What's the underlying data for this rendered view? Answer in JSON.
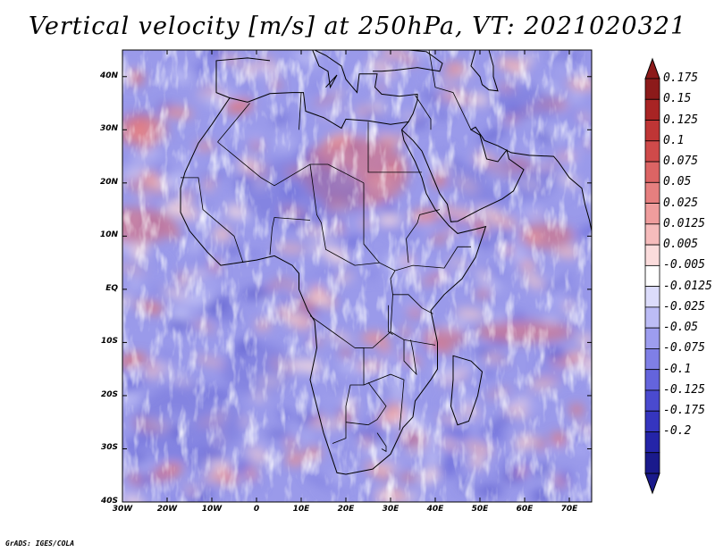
{
  "title": "Vertical velocity [m/s] at 250hPa, VT: 2021020321",
  "credit": "GrADS: IGES/COLA",
  "map": {
    "region": "Africa",
    "variable": "Vertical velocity",
    "level": "250hPa",
    "valid_time": "2021020321",
    "lon_range": [
      -30,
      75
    ],
    "lat_range": [
      -40,
      45
    ],
    "lat_ticks": [
      {
        "value": 40,
        "label": "40N"
      },
      {
        "value": 30,
        "label": "30N"
      },
      {
        "value": 20,
        "label": "20N"
      },
      {
        "value": 10,
        "label": "10N"
      },
      {
        "value": 0,
        "label": "EQ"
      },
      {
        "value": -10,
        "label": "10S"
      },
      {
        "value": -20,
        "label": "20S"
      },
      {
        "value": -30,
        "label": "30S"
      },
      {
        "value": -40,
        "label": "40S"
      }
    ],
    "lon_ticks": [
      {
        "value": -30,
        "label": "30W"
      },
      {
        "value": -20,
        "label": "20W"
      },
      {
        "value": -10,
        "label": "10W"
      },
      {
        "value": 0,
        "label": "0"
      },
      {
        "value": 10,
        "label": "10E"
      },
      {
        "value": 20,
        "label": "20E"
      },
      {
        "value": 30,
        "label": "30E"
      },
      {
        "value": 40,
        "label": "40E"
      },
      {
        "value": 50,
        "label": "50E"
      },
      {
        "value": 60,
        "label": "60E"
      },
      {
        "value": 70,
        "label": "70E"
      }
    ]
  },
  "colorbar": {
    "labels": [
      "0.175",
      "0.15",
      "0.125",
      "0.1",
      "0.075",
      "0.05",
      "0.025",
      "0.0125",
      "0.005",
      "-0.005",
      "-0.0125",
      "-0.025",
      "-0.05",
      "-0.075",
      "-0.1",
      "-0.125",
      "-0.175",
      "-0.2"
    ],
    "colors": [
      "#8c1a1a",
      "#a82424",
      "#bf3535",
      "#cf4a4a",
      "#dc6464",
      "#e67f7f",
      "#ef9d9d",
      "#f6bcbc",
      "#fbdcdc",
      "#ffffff",
      "#dcdcfb",
      "#bcbcf6",
      "#9d9def",
      "#7f7fe6",
      "#6464dc",
      "#4a4acf",
      "#3535bf",
      "#2424a8",
      "#1a1a8c"
    ],
    "top_arrow_color": "#8c1a1a",
    "bottom_arrow_color": "#1a1a8c"
  },
  "colors": {
    "positive": "#e05050",
    "negative": "#5050dc",
    "coastline": "#000000"
  }
}
